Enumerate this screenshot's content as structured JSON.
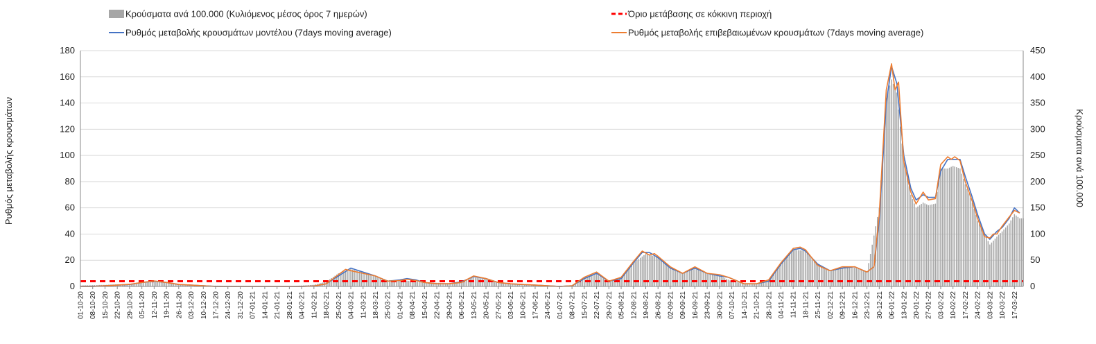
{
  "chart_data": {
    "type": "bar+line",
    "title": "",
    "legend": {
      "placement": "top",
      "items": [
        {
          "key": "cases",
          "label": "Κρούσματα ανά 100.000 (Κυλιόμενος μέσος όρος 7 ημερών)",
          "color": "#a6a6a6",
          "marker": "bar"
        },
        {
          "key": "threshold",
          "label": "Όριο μετάβασης σε κόκκινη περιοχή",
          "color": "#ff0000",
          "marker": "dashed"
        },
        {
          "key": "model",
          "label": "Ρυθμός μεταβολής κρουσμάτων μοντέλου (7days moving average)",
          "color": "#4472c4",
          "marker": "line"
        },
        {
          "key": "confirmed",
          "label": "Ρυθμός μεταβολής επιβεβαιωμένων κρουσμάτων (7days moving average)",
          "color": "#ed7d31",
          "marker": "line"
        }
      ]
    },
    "ylabel_left": "Ρυθμός μεταβολής κρουσμάτων",
    "ylabel_right": "Κρούσματα ανά 100.000",
    "ylim_left": [
      0,
      180
    ],
    "ylim_right": [
      0,
      450
    ],
    "yticks_left": [
      "0",
      "20",
      "40",
      "60",
      "80",
      "100",
      "120",
      "140",
      "160",
      "180"
    ],
    "yticks_right": [
      "0",
      "50",
      "100",
      "150",
      "200",
      "250",
      "300",
      "350",
      "400",
      "450"
    ],
    "grid": true,
    "x_start": "2020-10-01",
    "x_end": "2022-03-22",
    "x_tick_labels": [
      "01-10-20",
      "08-10-20",
      "15-10-20",
      "22-10-20",
      "29-10-20",
      "05-11-20",
      "12-11-20",
      "19-11-20",
      "26-11-20",
      "03-12-20",
      "10-12-20",
      "17-12-20",
      "24-12-20",
      "31-12-20",
      "07-01-21",
      "14-01-21",
      "21-01-21",
      "28-01-21",
      "04-02-21",
      "11-02-21",
      "18-02-21",
      "25-02-21",
      "04-03-21",
      "11-03-21",
      "18-03-21",
      "25-03-21",
      "01-04-21",
      "08-04-21",
      "15-04-21",
      "22-04-21",
      "29-04-21",
      "06-05-21",
      "13-05-21",
      "20-05-21",
      "27-05-21",
      "03-06-21",
      "10-06-21",
      "17-06-21",
      "24-06-21",
      "01-07-21",
      "08-07-21",
      "15-07-21",
      "22-07-21",
      "29-07-21",
      "05-08-21",
      "12-08-21",
      "19-08-21",
      "26-08-21",
      "02-09-21",
      "09-09-21",
      "16-09-21",
      "23-09-21",
      "30-09-21",
      "07-10-21",
      "14-10-21",
      "21-10-21",
      "28-10-21",
      "04-11-21",
      "11-11-21",
      "18-11-21",
      "25-11-21",
      "02-12-21",
      "09-12-21",
      "16-12-21",
      "23-12-21",
      "30-12-21",
      "06-01-22",
      "13-01-22",
      "20-01-22",
      "27-01-22",
      "03-02-22",
      "10-02-22",
      "17-02-22",
      "24-02-22",
      "03-03-22",
      "10-03-22",
      "17-03-22"
    ],
    "threshold_value": 4,
    "model_series": [
      [
        "2020-10-01",
        0
      ],
      [
        "2020-10-08",
        0
      ],
      [
        "2020-10-15",
        0.5
      ],
      [
        "2020-10-22",
        1
      ],
      [
        "2020-10-29",
        1.5
      ],
      [
        "2020-11-05",
        3
      ],
      [
        "2020-11-12",
        4
      ],
      [
        "2020-11-19",
        3
      ],
      [
        "2020-11-26",
        1.5
      ],
      [
        "2020-12-03",
        1
      ],
      [
        "2020-12-10",
        0.5
      ],
      [
        "2020-12-17",
        0
      ],
      [
        "2021-01-28",
        0
      ],
      [
        "2021-02-04",
        0
      ],
      [
        "2021-02-11",
        0.3
      ],
      [
        "2021-02-18",
        2
      ],
      [
        "2021-02-25",
        8
      ],
      [
        "2021-03-04",
        14
      ],
      [
        "2021-03-11",
        11
      ],
      [
        "2021-03-18",
        8
      ],
      [
        "2021-03-25",
        4
      ],
      [
        "2021-04-01",
        5
      ],
      [
        "2021-04-05",
        6
      ],
      [
        "2021-04-10",
        5
      ],
      [
        "2021-04-15",
        3
      ],
      [
        "2021-04-22",
        2
      ],
      [
        "2021-04-29",
        2
      ],
      [
        "2021-05-06",
        3.5
      ],
      [
        "2021-05-13",
        7.5
      ],
      [
        "2021-05-20",
        6
      ],
      [
        "2021-05-27",
        3
      ],
      [
        "2021-06-03",
        2
      ],
      [
        "2021-06-10",
        1.5
      ],
      [
        "2021-06-17",
        1
      ],
      [
        "2021-06-24",
        0.5
      ],
      [
        "2021-07-01",
        0
      ],
      [
        "2021-07-08",
        0.5
      ],
      [
        "2021-07-15",
        6
      ],
      [
        "2021-07-22",
        10
      ],
      [
        "2021-07-29",
        4
      ],
      [
        "2021-08-05",
        6
      ],
      [
        "2021-08-12",
        18
      ],
      [
        "2021-08-17",
        26
      ],
      [
        "2021-08-21",
        26
      ],
      [
        "2021-08-26",
        22
      ],
      [
        "2021-09-02",
        14
      ],
      [
        "2021-09-09",
        10
      ],
      [
        "2021-09-16",
        14
      ],
      [
        "2021-09-23",
        10
      ],
      [
        "2021-09-30",
        8
      ],
      [
        "2021-10-05",
        7
      ],
      [
        "2021-10-14",
        2
      ],
      [
        "2021-10-21",
        2
      ],
      [
        "2021-10-28",
        4
      ],
      [
        "2021-11-04",
        17
      ],
      [
        "2021-11-11",
        28
      ],
      [
        "2021-11-15",
        29
      ],
      [
        "2021-11-18",
        27
      ],
      [
        "2021-11-25",
        17
      ],
      [
        "2021-12-02",
        12
      ],
      [
        "2021-12-09",
        14
      ],
      [
        "2021-12-16",
        15
      ],
      [
        "2021-12-23",
        11
      ],
      [
        "2021-12-27",
        15
      ],
      [
        "2021-12-30",
        50
      ],
      [
        "2022-01-03",
        140
      ],
      [
        "2022-01-06",
        168
      ],
      [
        "2022-01-09",
        155
      ],
      [
        "2022-01-13",
        100
      ],
      [
        "2022-01-17",
        75
      ],
      [
        "2022-01-20",
        66
      ],
      [
        "2022-01-24",
        70
      ],
      [
        "2022-01-27",
        68
      ],
      [
        "2022-01-31",
        68
      ],
      [
        "2022-02-03",
        88
      ],
      [
        "2022-02-07",
        97
      ],
      [
        "2022-02-10",
        97
      ],
      [
        "2022-02-14",
        97
      ],
      [
        "2022-02-17",
        84
      ],
      [
        "2022-02-21",
        68
      ],
      [
        "2022-02-24",
        55
      ],
      [
        "2022-02-28",
        40
      ],
      [
        "2022-03-03",
        36
      ],
      [
        "2022-03-07",
        42
      ],
      [
        "2022-03-10",
        45
      ],
      [
        "2022-03-14",
        52
      ],
      [
        "2022-03-17",
        60
      ],
      [
        "2022-03-20",
        56
      ]
    ],
    "confirmed_series": [
      [
        "2020-10-01",
        0
      ],
      [
        "2020-10-08",
        0
      ],
      [
        "2020-10-15",
        0.5
      ],
      [
        "2020-10-22",
        1
      ],
      [
        "2020-10-29",
        1.6
      ],
      [
        "2020-11-05",
        3
      ],
      [
        "2020-11-12",
        4.2
      ],
      [
        "2020-11-19",
        3
      ],
      [
        "2020-11-26",
        1.5
      ],
      [
        "2020-12-03",
        1
      ],
      [
        "2020-12-10",
        0.5
      ],
      [
        "2020-12-17",
        0
      ],
      [
        "2021-01-28",
        0
      ],
      [
        "2021-02-04",
        0
      ],
      [
        "2021-02-11",
        0.3
      ],
      [
        "2021-02-18",
        2
      ],
      [
        "2021-02-25",
        9
      ],
      [
        "2021-03-01",
        13
      ],
      [
        "2021-03-04",
        12
      ],
      [
        "2021-03-11",
        10
      ],
      [
        "2021-03-18",
        8
      ],
      [
        "2021-03-25",
        4
      ],
      [
        "2021-04-01",
        4.5
      ],
      [
        "2021-04-05",
        5.5
      ],
      [
        "2021-04-10",
        4.5
      ],
      [
        "2021-04-15",
        3
      ],
      [
        "2021-04-22",
        2
      ],
      [
        "2021-04-29",
        2
      ],
      [
        "2021-05-06",
        3
      ],
      [
        "2021-05-13",
        8
      ],
      [
        "2021-05-20",
        6
      ],
      [
        "2021-05-27",
        3
      ],
      [
        "2021-06-03",
        2
      ],
      [
        "2021-06-10",
        1.5
      ],
      [
        "2021-06-17",
        1
      ],
      [
        "2021-06-24",
        0.5
      ],
      [
        "2021-07-01",
        0
      ],
      [
        "2021-07-08",
        0.5
      ],
      [
        "2021-07-15",
        7
      ],
      [
        "2021-07-22",
        11
      ],
      [
        "2021-07-29",
        4
      ],
      [
        "2021-08-05",
        7
      ],
      [
        "2021-08-12",
        19
      ],
      [
        "2021-08-17",
        27
      ],
      [
        "2021-08-21",
        24
      ],
      [
        "2021-08-24",
        25
      ],
      [
        "2021-08-26",
        23
      ],
      [
        "2021-09-02",
        15
      ],
      [
        "2021-09-09",
        10
      ],
      [
        "2021-09-16",
        15
      ],
      [
        "2021-09-23",
        10
      ],
      [
        "2021-09-30",
        9
      ],
      [
        "2021-10-05",
        7
      ],
      [
        "2021-10-14",
        2
      ],
      [
        "2021-10-21",
        2
      ],
      [
        "2021-10-28",
        5
      ],
      [
        "2021-11-04",
        18
      ],
      [
        "2021-11-11",
        29
      ],
      [
        "2021-11-15",
        30
      ],
      [
        "2021-11-18",
        28
      ],
      [
        "2021-11-25",
        16
      ],
      [
        "2021-12-02",
        12
      ],
      [
        "2021-12-09",
        15
      ],
      [
        "2021-12-16",
        15
      ],
      [
        "2021-12-23",
        11
      ],
      [
        "2021-12-27",
        15
      ],
      [
        "2021-12-30",
        55
      ],
      [
        "2022-01-03",
        150
      ],
      [
        "2022-01-06",
        170
      ],
      [
        "2022-01-08",
        150
      ],
      [
        "2022-01-10",
        156
      ],
      [
        "2022-01-13",
        95
      ],
      [
        "2022-01-17",
        72
      ],
      [
        "2022-01-20",
        63
      ],
      [
        "2022-01-24",
        72
      ],
      [
        "2022-01-27",
        66
      ],
      [
        "2022-01-31",
        67
      ],
      [
        "2022-02-03",
        93
      ],
      [
        "2022-02-07",
        99
      ],
      [
        "2022-02-09",
        97
      ],
      [
        "2022-02-11",
        99
      ],
      [
        "2022-02-14",
        96
      ],
      [
        "2022-02-17",
        80
      ],
      [
        "2022-02-21",
        65
      ],
      [
        "2022-02-24",
        52
      ],
      [
        "2022-02-28",
        38
      ],
      [
        "2022-03-03",
        37
      ],
      [
        "2022-03-05",
        40
      ],
      [
        "2022-03-07",
        40
      ],
      [
        "2022-03-10",
        46
      ],
      [
        "2022-03-14",
        53
      ],
      [
        "2022-03-17",
        58
      ],
      [
        "2022-03-20",
        56
      ]
    ],
    "cases_series": [
      [
        "2020-10-01",
        2
      ],
      [
        "2020-10-15",
        3
      ],
      [
        "2020-10-29",
        5
      ],
      [
        "2020-11-05",
        8
      ],
      [
        "2020-11-12",
        11
      ],
      [
        "2020-11-19",
        9
      ],
      [
        "2020-11-26",
        5
      ],
      [
        "2020-12-03",
        3
      ],
      [
        "2020-12-17",
        1.5
      ],
      [
        "2020-12-31",
        1
      ],
      [
        "2021-01-14",
        0.5
      ],
      [
        "2021-01-28",
        0.5
      ],
      [
        "2021-02-11",
        3
      ],
      [
        "2021-02-18",
        9
      ],
      [
        "2021-02-25",
        25
      ],
      [
        "2021-03-04",
        33
      ],
      [
        "2021-03-11",
        27
      ],
      [
        "2021-03-18",
        20
      ],
      [
        "2021-03-25",
        12
      ],
      [
        "2021-04-01",
        12
      ],
      [
        "2021-04-08",
        10
      ],
      [
        "2021-04-15",
        8
      ],
      [
        "2021-04-29",
        6
      ],
      [
        "2021-05-06",
        10
      ],
      [
        "2021-05-13",
        17
      ],
      [
        "2021-05-20",
        14
      ],
      [
        "2021-05-27",
        8
      ],
      [
        "2021-06-03",
        5
      ],
      [
        "2021-06-17",
        3
      ],
      [
        "2021-07-01",
        1
      ],
      [
        "2021-07-08",
        2
      ],
      [
        "2021-07-15",
        16
      ],
      [
        "2021-07-22",
        23
      ],
      [
        "2021-07-29",
        10
      ],
      [
        "2021-08-05",
        18
      ],
      [
        "2021-08-12",
        45
      ],
      [
        "2021-08-19",
        62
      ],
      [
        "2021-08-26",
        56
      ],
      [
        "2021-09-02",
        36
      ],
      [
        "2021-09-09",
        25
      ],
      [
        "2021-09-16",
        34
      ],
      [
        "2021-09-23",
        25
      ],
      [
        "2021-09-30",
        20
      ],
      [
        "2021-10-07",
        10
      ],
      [
        "2021-10-14",
        6
      ],
      [
        "2021-10-21",
        6
      ],
      [
        "2021-10-28",
        10
      ],
      [
        "2021-11-04",
        45
      ],
      [
        "2021-11-11",
        70
      ],
      [
        "2021-11-18",
        68
      ],
      [
        "2021-11-25",
        42
      ],
      [
        "2021-12-02",
        30
      ],
      [
        "2021-12-09",
        35
      ],
      [
        "2021-12-16",
        36
      ],
      [
        "2021-12-23",
        27
      ],
      [
        "2021-12-30",
        150
      ],
      [
        "2022-01-03",
        360
      ],
      [
        "2022-01-06",
        395
      ],
      [
        "2022-01-09",
        370
      ],
      [
        "2022-01-13",
        240
      ],
      [
        "2022-01-17",
        175
      ],
      [
        "2022-01-20",
        150
      ],
      [
        "2022-01-24",
        160
      ],
      [
        "2022-01-27",
        155
      ],
      [
        "2022-01-31",
        158
      ],
      [
        "2022-02-03",
        225
      ],
      [
        "2022-02-07",
        225
      ],
      [
        "2022-02-10",
        230
      ],
      [
        "2022-02-14",
        225
      ],
      [
        "2022-02-17",
        195
      ],
      [
        "2022-02-21",
        160
      ],
      [
        "2022-02-24",
        125
      ],
      [
        "2022-02-28",
        100
      ],
      [
        "2022-03-03",
        80
      ],
      [
        "2022-03-07",
        95
      ],
      [
        "2022-03-10",
        105
      ],
      [
        "2022-03-14",
        120
      ],
      [
        "2022-03-17",
        138
      ],
      [
        "2022-03-20",
        130
      ]
    ]
  }
}
